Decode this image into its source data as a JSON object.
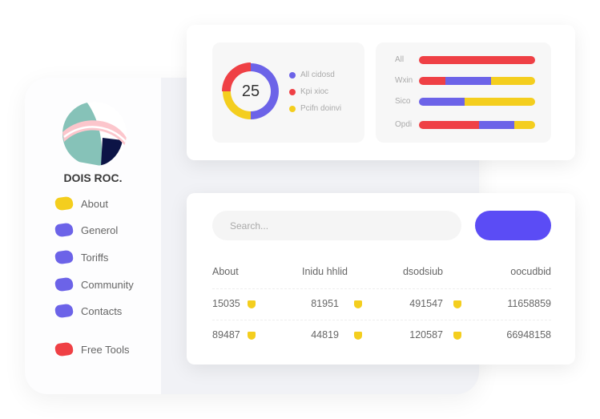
{
  "sidebar": {
    "brand": "DOIS ROC.",
    "items": [
      {
        "label": "About",
        "color": "#f4ce1e"
      },
      {
        "label": "Generol",
        "color": "#6c63e8"
      },
      {
        "label": "Toriffs",
        "color": "#6c63e8"
      },
      {
        "label": "Community",
        "color": "#6c63e8"
      },
      {
        "label": "Contacts",
        "color": "#6c63e8"
      },
      {
        "label": "Free Tools",
        "color": "#ef4045"
      }
    ]
  },
  "donut": {
    "value": "25",
    "segments": [
      {
        "label": "All cidosd",
        "color": "#6c63e8",
        "percent": 50
      },
      {
        "label": "Kpi xioc",
        "color": "#ef4045",
        "percent": 25
      },
      {
        "label": "Pcifn doinvi",
        "color": "#f4ce1e",
        "percent": 25
      }
    ]
  },
  "bars": [
    {
      "label": "All",
      "segments": [
        {
          "color": "#ef4045",
          "percent": 100
        }
      ]
    },
    {
      "label": "Wxin",
      "segments": [
        {
          "color": "#ef4045",
          "percent": 23
        },
        {
          "color": "#6c63e8",
          "percent": 39
        },
        {
          "color": "#f4ce1e",
          "percent": 38
        }
      ]
    },
    {
      "label": "Sico",
      "segments": [
        {
          "color": "#6c63e8",
          "percent": 39
        },
        {
          "color": "#f4ce1e",
          "percent": 61
        }
      ]
    },
    {
      "label": "Opdi",
      "segments": [
        {
          "color": "#ef4045",
          "percent": 52
        },
        {
          "color": "#6c63e8",
          "percent": 30
        },
        {
          "color": "#f4ce1e",
          "percent": 18
        }
      ]
    }
  ],
  "search": {
    "placeholder": "Search..."
  },
  "table": {
    "headers": [
      "About",
      "Inidu hhlid",
      "dsodsiub",
      "oocudbid"
    ],
    "rows": [
      [
        "15035",
        "81951",
        "491547",
        "11658859"
      ],
      [
        "89487",
        "44819",
        "120587",
        "66948158"
      ]
    ]
  }
}
